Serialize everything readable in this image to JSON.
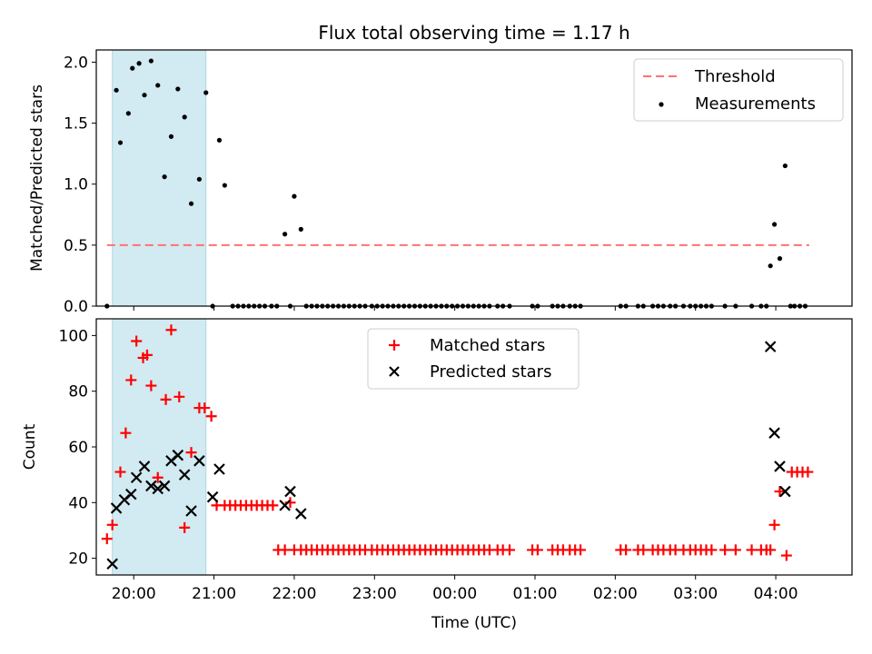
{
  "title": "Flux total observing time = 1.17 h",
  "colors": {
    "threshold": "#ff7070",
    "shade": "#add8e6",
    "matched": "#ff0000",
    "predicted": "#000000",
    "measurement": "#000000"
  },
  "chart_data": [
    {
      "type": "scatter",
      "panel": "top",
      "ylabel": "Matched/Predicted stars",
      "ylim": [
        0,
        2.1
      ],
      "yticks": [
        0.0,
        0.5,
        1.0,
        1.5,
        2.0
      ],
      "ytick_labels": [
        "0.0",
        "0.5",
        "1.0",
        "1.5",
        "2.0"
      ],
      "legend": {
        "placement": "top-right",
        "entries": [
          "Threshold",
          "Measurements"
        ]
      },
      "threshold": {
        "name": "Threshold",
        "y": 0.5,
        "x_range": [
          "19:40",
          "04:25"
        ],
        "style": "dashed"
      },
      "shaded_region": {
        "x_range": [
          "19:44",
          "20:54"
        ]
      },
      "series": [
        {
          "name": "Measurements",
          "x": [
            "19:40",
            "19:47",
            "19:50",
            "19:56",
            "19:59",
            "20:04",
            "20:08",
            "20:13",
            "20:18",
            "20:23",
            "20:28",
            "20:33",
            "20:38",
            "20:43",
            "20:49",
            "20:54",
            "20:59",
            "21:04",
            "21:08",
            "21:14",
            "21:18",
            "21:22",
            "21:26",
            "21:30",
            "21:34",
            "21:38",
            "21:43",
            "21:47",
            "21:53",
            "21:57",
            "22:00",
            "22:05",
            "22:09",
            "22:13",
            "22:17",
            "22:21",
            "22:25",
            "22:29",
            "22:33",
            "22:37",
            "22:41",
            "22:45",
            "22:49",
            "22:53",
            "22:58",
            "23:02",
            "23:06",
            "23:10",
            "23:14",
            "23:18",
            "23:22",
            "23:26",
            "23:30",
            "23:34",
            "23:38",
            "23:42",
            "23:46",
            "23:50",
            "23:54",
            "23:58",
            "00:02",
            "00:06",
            "00:10",
            "00:14",
            "00:18",
            "00:22",
            "00:26",
            "00:32",
            "00:36",
            "00:41",
            "00:58",
            "01:02",
            "01:13",
            "01:17",
            "01:21",
            "01:26",
            "01:30",
            "01:34",
            "02:04",
            "02:08",
            "02:17",
            "02:21",
            "02:28",
            "02:32",
            "02:36",
            "02:41",
            "02:45",
            "02:51",
            "02:56",
            "03:00",
            "03:04",
            "03:08",
            "03:12",
            "03:22",
            "03:30",
            "03:42",
            "03:49",
            "03:53",
            "03:56",
            "03:59",
            "04:03",
            "04:07",
            "04:11",
            "04:14",
            "04:18",
            "04:22"
          ],
          "values": [
            0,
            1.77,
            1.34,
            1.58,
            1.95,
            1.99,
            1.73,
            2.01,
            1.81,
            1.06,
            1.39,
            1.78,
            1.55,
            0.84,
            1.04,
            1.75,
            0,
            1.36,
            0.99,
            0,
            0,
            0,
            0,
            0,
            0,
            0,
            0,
            0,
            0.59,
            0,
            0.9,
            0.63,
            0,
            0,
            0,
            0,
            0,
            0,
            0,
            0,
            0,
            0,
            0,
            0,
            0,
            0,
            0,
            0,
            0,
            0,
            0,
            0,
            0,
            0,
            0,
            0,
            0,
            0,
            0,
            0,
            0,
            0,
            0,
            0,
            0,
            0,
            0,
            0,
            0,
            0,
            0,
            0,
            0,
            0,
            0,
            0,
            0,
            0,
            0,
            0,
            0,
            0,
            0,
            0,
            0,
            0,
            0,
            0,
            0,
            0,
            0,
            0,
            0,
            0,
            0,
            0,
            0,
            0,
            0.33,
            0.67,
            0.39,
            1.15,
            0,
            0,
            0,
            0
          ]
        }
      ]
    },
    {
      "type": "scatter",
      "panel": "bottom",
      "xlabel": "Time (UTC)",
      "ylabel": "Count",
      "ylim": [
        14,
        106
      ],
      "yticks": [
        20,
        40,
        60,
        80,
        100
      ],
      "ytick_labels": [
        "20",
        "40",
        "60",
        "80",
        "100"
      ],
      "xlim": [
        "19:32",
        "04:57"
      ],
      "xticks": [
        "20:00",
        "21:00",
        "22:00",
        "23:00",
        "00:00",
        "01:00",
        "02:00",
        "03:00",
        "04:00"
      ],
      "xtick_labels": [
        "20:00",
        "21:00",
        "22:00",
        "23:00",
        "00:00",
        "01:00",
        "02:00",
        "03:00",
        "04:00"
      ],
      "legend": {
        "placement": "upper-center",
        "entries": [
          "Matched stars",
          "Predicted stars"
        ]
      },
      "shaded_region": {
        "x_range": [
          "19:44",
          "20:54"
        ]
      },
      "series": [
        {
          "name": "Matched stars",
          "marker": "plus",
          "x": [
            "19:40",
            "19:44",
            "19:50",
            "19:54",
            "19:58",
            "20:02",
            "20:07",
            "20:10",
            "20:13",
            "20:18",
            "20:24",
            "20:28",
            "20:34",
            "20:38",
            "20:43",
            "20:49",
            "20:53",
            "20:58",
            "21:02",
            "21:08",
            "21:12",
            "21:16",
            "21:20",
            "21:24",
            "21:28",
            "21:32",
            "21:36",
            "21:40",
            "21:44",
            "21:48",
            "21:53",
            "21:57",
            "22:00",
            "22:05",
            "22:09",
            "22:13",
            "22:17",
            "22:21",
            "22:25",
            "22:29",
            "22:33",
            "22:37",
            "22:41",
            "22:45",
            "22:49",
            "22:53",
            "22:58",
            "23:02",
            "23:06",
            "23:10",
            "23:14",
            "23:18",
            "23:22",
            "23:26",
            "23:30",
            "23:34",
            "23:38",
            "23:42",
            "23:46",
            "23:50",
            "23:54",
            "23:58",
            "00:02",
            "00:06",
            "00:10",
            "00:14",
            "00:18",
            "00:22",
            "00:26",
            "00:32",
            "00:36",
            "00:41",
            "00:58",
            "01:02",
            "01:13",
            "01:17",
            "01:21",
            "01:26",
            "01:30",
            "01:34",
            "02:04",
            "02:08",
            "02:17",
            "02:21",
            "02:28",
            "02:32",
            "02:36",
            "02:41",
            "02:45",
            "02:51",
            "02:56",
            "03:00",
            "03:04",
            "03:08",
            "03:12",
            "03:22",
            "03:30",
            "03:42",
            "03:49",
            "03:53",
            "03:56",
            "03:59",
            "04:03",
            "04:08",
            "04:12",
            "04:16",
            "04:20",
            "04:24"
          ],
          "values": [
            27,
            32,
            51,
            65,
            84,
            98,
            92,
            93,
            82,
            49,
            77,
            102,
            78,
            31,
            58,
            74,
            74,
            71,
            39,
            39,
            39,
            39,
            39,
            39,
            39,
            39,
            39,
            39,
            39,
            23,
            23,
            40,
            23,
            23,
            23,
            23,
            23,
            23,
            23,
            23,
            23,
            23,
            23,
            23,
            23,
            23,
            23,
            23,
            23,
            23,
            23,
            23,
            23,
            23,
            23,
            23,
            23,
            23,
            23,
            23,
            23,
            23,
            23,
            23,
            23,
            23,
            23,
            23,
            23,
            23,
            23,
            23,
            23,
            23,
            23,
            23,
            23,
            23,
            23,
            23,
            23,
            23,
            23,
            23,
            23,
            23,
            23,
            23,
            23,
            23,
            23,
            23,
            23,
            23,
            23,
            23,
            23,
            23,
            23,
            23,
            23,
            32,
            44,
            21,
            51,
            51,
            51,
            51
          ]
        },
        {
          "name": "Predicted stars",
          "marker": "x",
          "x": [
            "19:44",
            "19:47",
            "19:53",
            "19:58",
            "20:02",
            "20:08",
            "20:13",
            "20:18",
            "20:23",
            "20:28",
            "20:33",
            "20:38",
            "20:43",
            "20:49",
            "20:59",
            "21:04",
            "21:53",
            "21:57",
            "22:05",
            "03:56",
            "03:59",
            "04:03",
            "04:07"
          ],
          "values": [
            18,
            38,
            41,
            43,
            49,
            53,
            46,
            45,
            46,
            55,
            57,
            50,
            37,
            55,
            42,
            52,
            39,
            44,
            36,
            96,
            65,
            53,
            44
          ]
        }
      ]
    }
  ]
}
